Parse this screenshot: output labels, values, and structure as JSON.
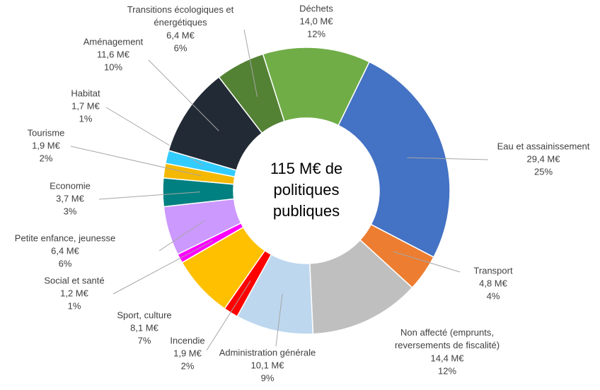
{
  "chart_data": {
    "type": "donut",
    "center_label": [
      "115 M€ de",
      "politiques",
      "publiques"
    ],
    "categories": [
      "Eau et assainissement",
      "Transport",
      "Non affecté (emprunts, reversements de fiscalité)",
      "Administration générale",
      "Incendie",
      "Sport, culture",
      "Social et santé",
      "Petite enfance, jeunesse",
      "Economie",
      "Tourisme",
      "Habitat",
      "Aménagement",
      "Transitions écologiques et énergétiques",
      "Déchets"
    ],
    "values": [
      29.4,
      4.8,
      14.4,
      10.1,
      1.9,
      8.1,
      1.2,
      6.4,
      3.7,
      1.9,
      1.7,
      11.6,
      6.4,
      14.0
    ],
    "value_labels": [
      "29,4 M€",
      "4,8 M€",
      "14,4 M€",
      "10,1 M€",
      "1,9 M€",
      "8,1 M€",
      "1,2 M€",
      "6,4 M€",
      "3,7 M€",
      "1,9 M€",
      "1,7 M€",
      "11,6 M€",
      "6,4 M€",
      "14,0 M€"
    ],
    "percent_labels": [
      "25%",
      "4%",
      "12%",
      "9%",
      "2%",
      "7%",
      "1%",
      "6%",
      "3%",
      "2%",
      "1%",
      "10%",
      "6%",
      "12%"
    ],
    "colors": [
      "#4472c4",
      "#ed7d31",
      "#bfbfbf",
      "#bdd7ee",
      "#ff0000",
      "#ffc000",
      "#ff00ff",
      "#cc99ff",
      "#008080",
      "#f5b800",
      "#33ccff",
      "#222a35",
      "#548235",
      "#70ad47"
    ]
  }
}
